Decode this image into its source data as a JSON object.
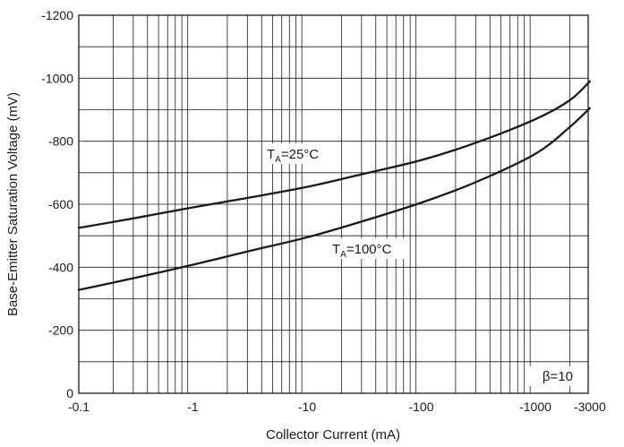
{
  "chart_data": {
    "type": "line",
    "title": "",
    "xlabel": "Collector Current (mA)",
    "ylabel": "Base-Emitter Saturation Voltage (mV)",
    "x_scale": "log",
    "xlim": [
      -0.1,
      -3000
    ],
    "ylim": [
      0,
      -1200
    ],
    "grid": true,
    "x_ticks": [
      -0.1,
      -1,
      -10,
      -100,
      -1000,
      -3000
    ],
    "x_tick_labels": [
      "-0.1",
      "-1",
      "-10",
      "-100",
      "-1000",
      "-3000"
    ],
    "y_ticks": [
      0,
      -200,
      -400,
      -600,
      -800,
      -1000,
      -1200
    ],
    "y_tick_labels": [
      "0",
      "-200",
      "-400",
      "-600",
      "-800",
      "-1000",
      "-1200"
    ],
    "series": [
      {
        "label_main": "T",
        "label_sub": "A",
        "label_rest": "=25°C",
        "x": [
          -0.1,
          -0.3,
          -1,
          -3,
          -10,
          -30,
          -100,
          -300,
          -1000,
          -2000,
          -3000
        ],
        "y": [
          -525,
          -555,
          -590,
          -620,
          -655,
          -695,
          -740,
          -795,
          -870,
          -930,
          -990
        ]
      },
      {
        "label_main": "T",
        "label_sub": "A",
        "label_rest": "=100°C",
        "x": [
          -0.1,
          -0.3,
          -1,
          -3,
          -10,
          -30,
          -100,
          -300,
          -1000,
          -2000,
          -3000
        ],
        "y": [
          -328,
          -365,
          -408,
          -450,
          -495,
          -545,
          -605,
          -670,
          -760,
          -845,
          -905
        ]
      }
    ],
    "annotations": [
      {
        "text": "β=10",
        "position": "bottom-right"
      }
    ]
  },
  "colors": {
    "line": "#1a1a1a",
    "grid": "#1a1a1a",
    "background": "#ffffff"
  }
}
